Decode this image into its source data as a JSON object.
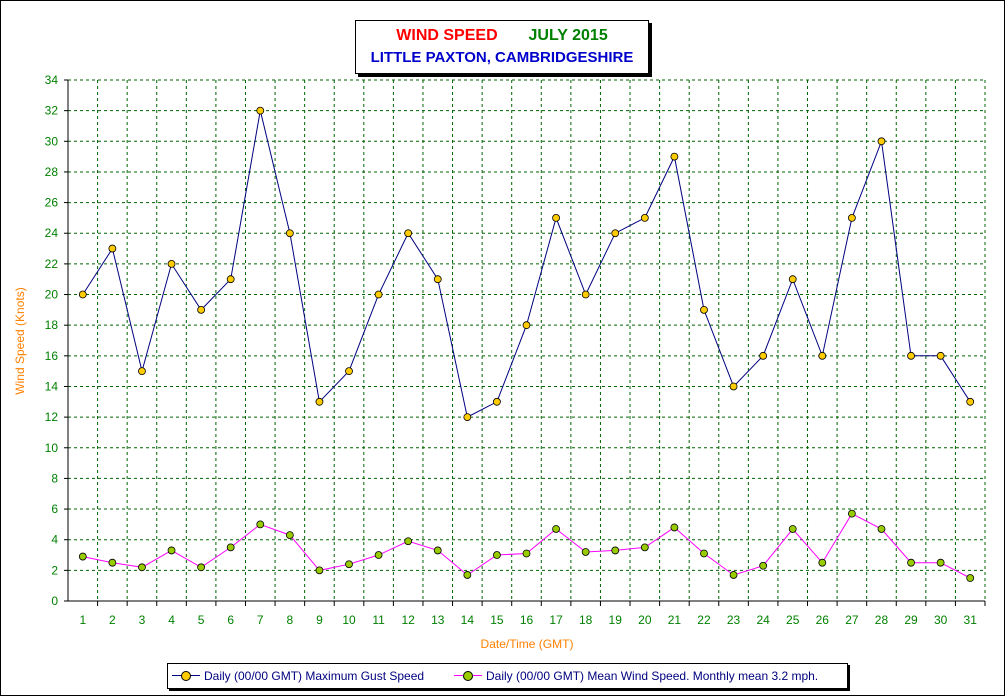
{
  "title": {
    "part1": "WIND SPEED",
    "part2": "JULY 2015",
    "line2": "LITTLE PAXTON, CAMBRIDGESHIRE",
    "colors": {
      "part1": "#ff0000",
      "part2": "#008000",
      "line2": "#0000cc"
    }
  },
  "chart_data": {
    "type": "line",
    "xlabel": "Date/Time (GMT)",
    "ylabel": "Wind Speed (Knots)",
    "ylim": [
      0,
      34
    ],
    "ytick_step": 2,
    "grid": true,
    "legend_position": "bottom",
    "x": [
      "1",
      "2",
      "3",
      "4",
      "5",
      "6",
      "7",
      "8",
      "9",
      "10",
      "11",
      "12",
      "13",
      "14",
      "15",
      "16",
      "17",
      "18",
      "19",
      "20",
      "21",
      "22",
      "23",
      "24",
      "25",
      "26",
      "27",
      "28",
      "29",
      "30",
      "31"
    ],
    "series": [
      {
        "name": "Daily (00/00 GMT) Maximum Gust Speed",
        "line_color": "#000080",
        "marker_color": "#ffcc00",
        "values": [
          20,
          23,
          15,
          22,
          19,
          21,
          32,
          24,
          13,
          15,
          20,
          24,
          21,
          12,
          13,
          18,
          25,
          20,
          24,
          25,
          29,
          19,
          14,
          16,
          21,
          16,
          25,
          30,
          16,
          16,
          13
        ]
      },
      {
        "name": "Daily (00/00 GMT) Mean Wind Speed. Monthly mean 3.2 mph.",
        "line_color": "#ff00ff",
        "marker_color": "#99cc00",
        "values": [
          2.9,
          2.5,
          2.2,
          3.3,
          2.2,
          3.5,
          5.0,
          4.3,
          2.0,
          2.4,
          3.0,
          3.9,
          3.3,
          1.7,
          3.0,
          3.1,
          4.7,
          3.2,
          3.3,
          3.5,
          4.8,
          3.1,
          1.7,
          2.3,
          4.7,
          2.5,
          5.7,
          4.7,
          2.5,
          2.5,
          1.5
        ]
      }
    ],
    "colors": {
      "axis_labels": "#008000",
      "axis_titles": "#ff8000",
      "grid": "#006400"
    }
  }
}
